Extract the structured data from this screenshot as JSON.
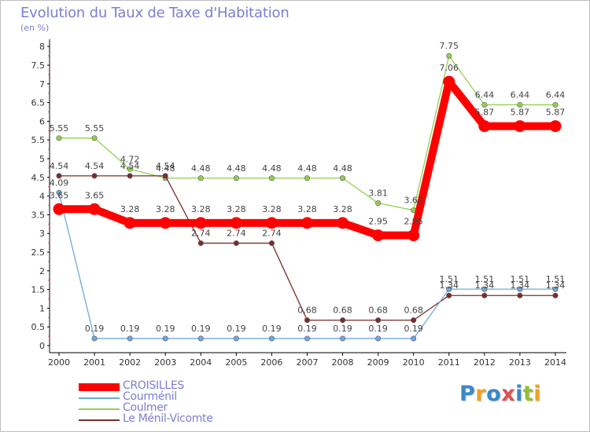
{
  "chart_data": {
    "type": "line",
    "title": "Evolution du Taux de Taxe d'Habitation",
    "subtitle": "(en %)",
    "x": [
      "2000",
      "2001",
      "2002",
      "2003",
      "2004",
      "2005",
      "2006",
      "2007",
      "2008",
      "2009",
      "2010",
      "2011",
      "2012",
      "2013",
      "2014"
    ],
    "ylim": [
      0,
      8
    ],
    "yticks": [
      "0",
      "0.5",
      "1",
      "1.5",
      "2",
      "2.5",
      "3",
      "3.5",
      "4",
      "4.5",
      "5",
      "5.5",
      "6",
      "6.5",
      "7",
      "7.5",
      "8"
    ],
    "grid": false,
    "legend_position": "bottom-left",
    "series": [
      {
        "name": "CROISILLES",
        "color": "#ff0000",
        "values": [
          3.65,
          3.65,
          3.28,
          3.28,
          3.28,
          3.28,
          3.28,
          3.28,
          3.28,
          2.95,
          2.95,
          7.06,
          5.87,
          5.87,
          5.87
        ],
        "labels": [
          "3.65",
          "3.65",
          "3.28",
          "3.28",
          "3.28",
          "3.28",
          "3.28",
          "3.28",
          "3.28",
          "2.95",
          "2.95",
          "7.06",
          "5.87",
          "5.87",
          "5.87"
        ]
      },
      {
        "name": "Courménil",
        "color": "#6fa8dc",
        "values": [
          4.09,
          0.19,
          0.19,
          0.19,
          0.19,
          0.19,
          0.19,
          0.19,
          0.19,
          0.19,
          0.19,
          1.51,
          1.51,
          1.51,
          1.51
        ],
        "labels": [
          "4.09",
          "0.19",
          "0.19",
          "0.19",
          "0.19",
          "0.19",
          "0.19",
          "0.19",
          "0.19",
          "0.19",
          "0.19",
          "1.51",
          "1.51",
          "1.51",
          "1.51"
        ]
      },
      {
        "name": "Coulmer",
        "color": "#93d050",
        "values": [
          5.55,
          5.55,
          4.72,
          4.48,
          4.48,
          4.48,
          4.48,
          4.48,
          4.48,
          3.81,
          3.62,
          7.75,
          6.44,
          6.44,
          6.44
        ],
        "labels": [
          "5.55",
          "5.55",
          "4.72",
          "4.48",
          "4.48",
          "4.48",
          "4.48",
          "4.48",
          "4.48",
          "3.81",
          "3.62",
          "7.75",
          "6.44",
          "6.44",
          "6.44"
        ]
      },
      {
        "name": "Le Ménil-Vicomte",
        "color": "#7b2c2c",
        "values": [
          4.54,
          4.54,
          4.54,
          4.54,
          2.74,
          2.74,
          2.74,
          0.68,
          0.68,
          0.68,
          0.68,
          1.34,
          1.34,
          1.34,
          1.34
        ],
        "labels": [
          "4.54",
          "4.54",
          "4.54",
          "4.54",
          "2.74",
          "2.74",
          "2.74",
          "0.68",
          "0.68",
          "0.68",
          "0.68",
          "1.34",
          "1.34",
          "1.34",
          "1.34"
        ]
      }
    ]
  },
  "logo": {
    "letters": [
      "P",
      "r",
      "o",
      "x",
      "i",
      "t",
      "i"
    ],
    "colors": [
      "#3a88c8",
      "#f0a020",
      "#3a88c8",
      "#e05050",
      "#3a88c8",
      "#93c030",
      "#f0a020"
    ]
  }
}
